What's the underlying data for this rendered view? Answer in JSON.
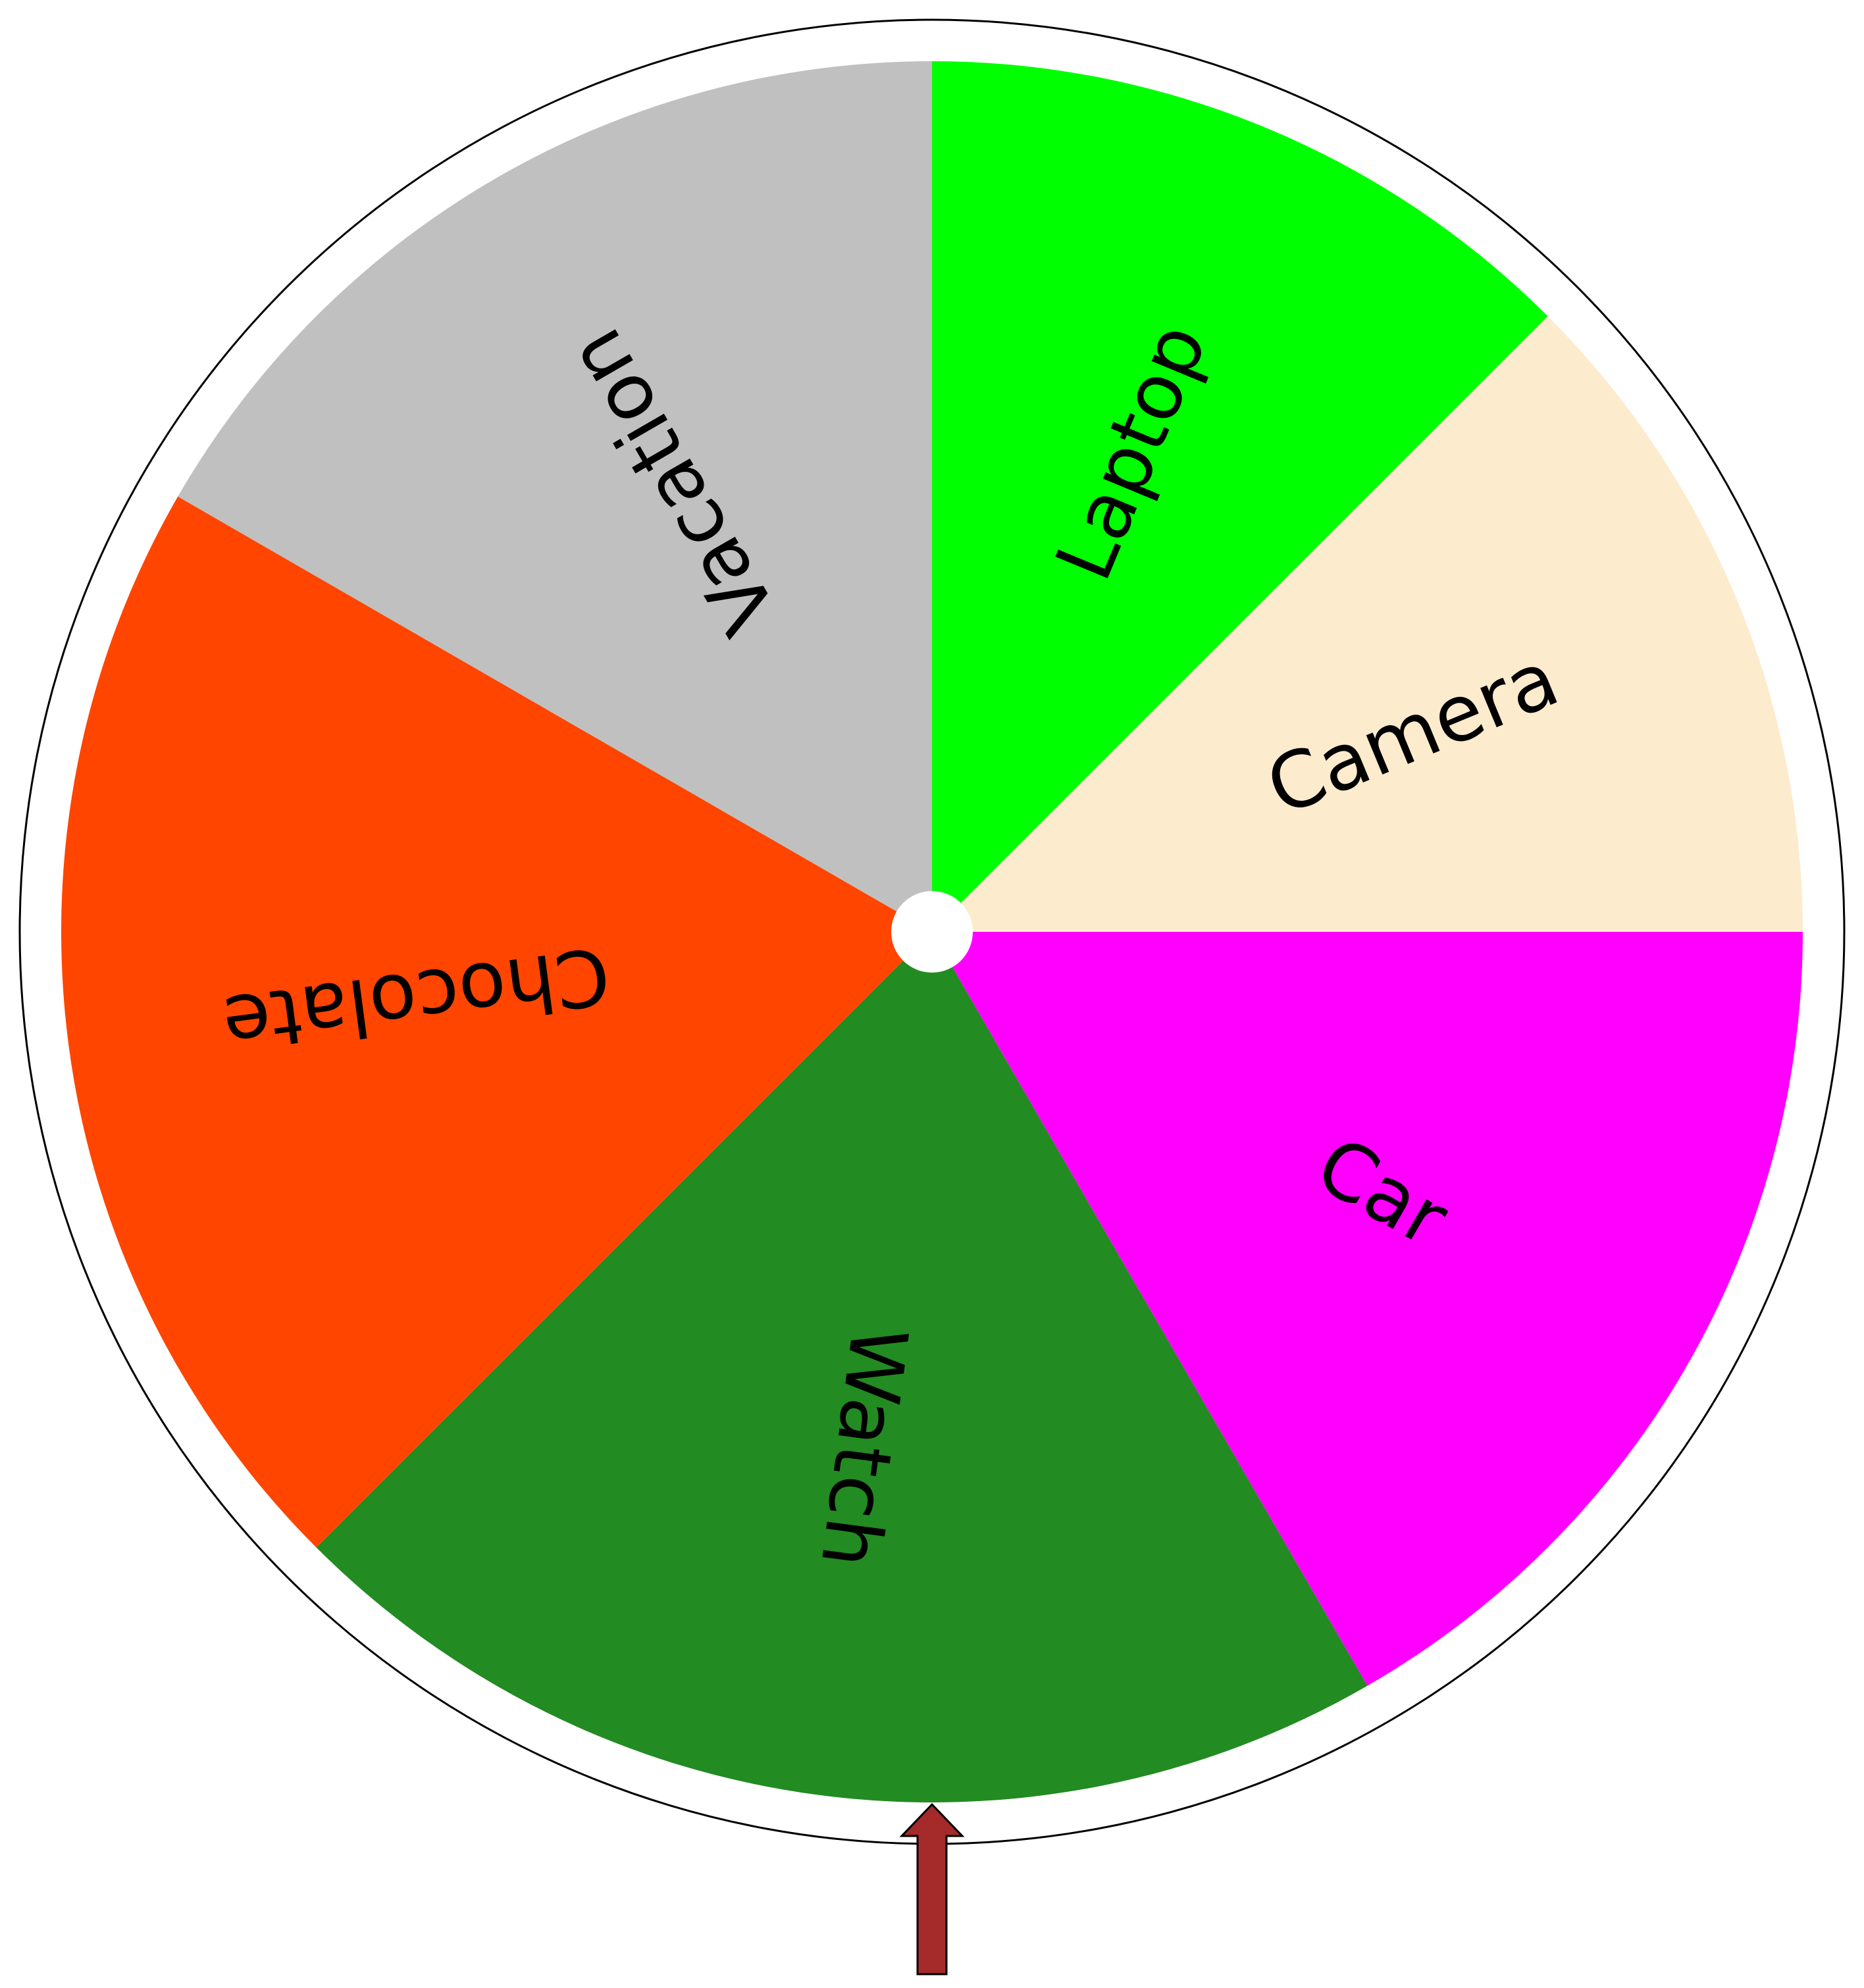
{
  "wheel": {
    "segments": [
      {
        "label": "Laptop",
        "color": "#00FF00",
        "start_deg": 0,
        "end_deg": 45
      },
      {
        "label": "Camera",
        "color": "#FDEBCE",
        "start_deg": 45,
        "end_deg": 90
      },
      {
        "label": "Car",
        "color": "#FF00FF",
        "start_deg": 90,
        "end_deg": 150
      },
      {
        "label": "Watch",
        "color": "#228B22",
        "start_deg": 150,
        "end_deg": 225
      },
      {
        "label": "Chocolate",
        "color": "#FF4500",
        "start_deg": 225,
        "end_deg": 300
      },
      {
        "label": "Vacation",
        "color": "#C0C0C0",
        "start_deg": 300,
        "end_deg": 360
      }
    ],
    "rim_color": "#FFFFFF",
    "rim_stroke": "#000000",
    "hub_color": "#FFFFFF",
    "pointer": {
      "color": "#A52A2A",
      "stroke": "#000000"
    }
  }
}
